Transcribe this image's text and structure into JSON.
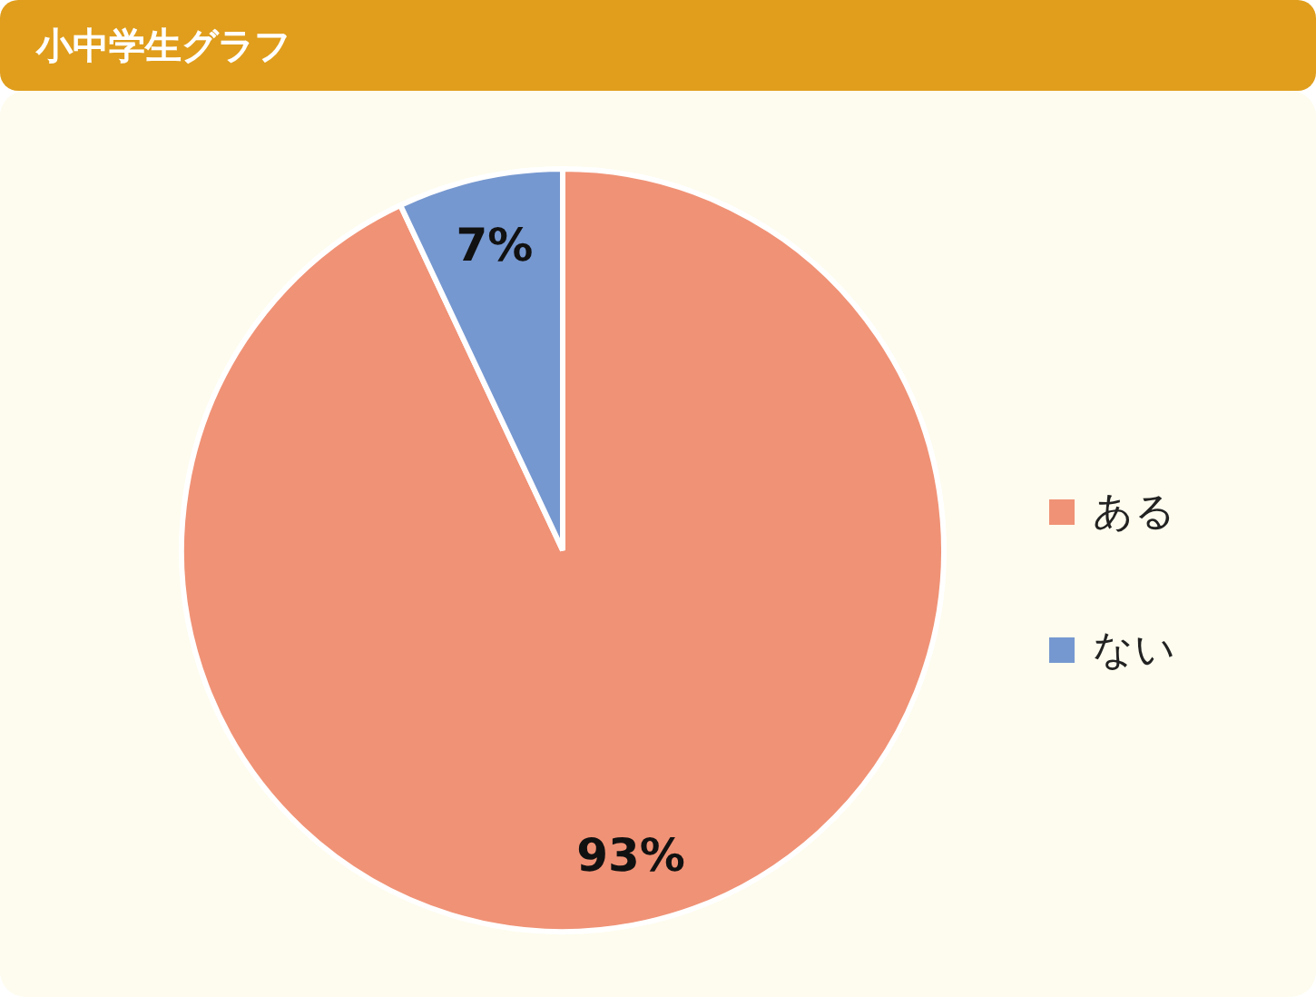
{
  "chart_data": {
    "type": "pie",
    "title": "小中学生グラフ",
    "categories": [
      "ある",
      "ない"
    ],
    "values": [
      93,
      7
    ],
    "colors": [
      "#f09276",
      "#7698d0"
    ],
    "value_labels": [
      "93%",
      "7%"
    ],
    "legend": "right"
  }
}
